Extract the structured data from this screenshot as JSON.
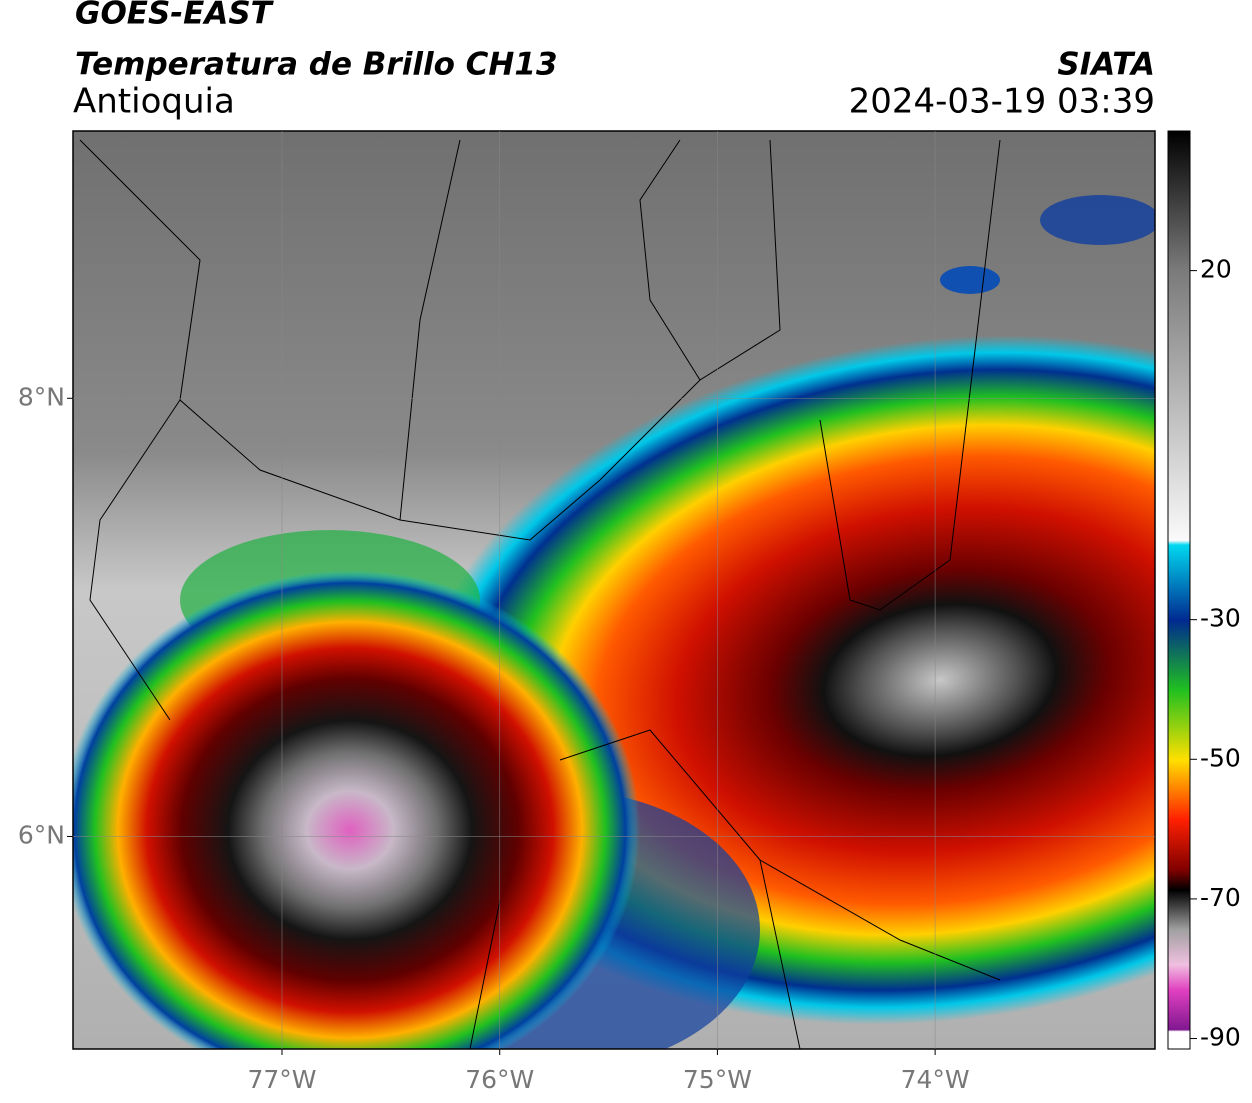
{
  "header": {
    "title": "GOES-EAST",
    "subtitle": "Temperatura de Brillo CH13",
    "region": "Antioquia",
    "source": "SIATA",
    "timestamp": "2024-03-19 03:39"
  },
  "map": {
    "xlim": [
      -77.96,
      -72.99
    ],
    "ylim": [
      5.03,
      9.22
    ],
    "xticks": [
      {
        "value": -77,
        "label": "77°W"
      },
      {
        "value": -76,
        "label": "76°W"
      },
      {
        "value": -75,
        "label": "75°W"
      },
      {
        "value": -74,
        "label": "74°W"
      }
    ],
    "yticks": [
      {
        "value": 6,
        "label": "6°N"
      },
      {
        "value": 8,
        "label": "8°N"
      }
    ]
  },
  "colorbar": {
    "lim": [
      40,
      -91.5
    ],
    "ticks": [
      20,
      -30,
      -50,
      -70,
      -90
    ]
  }
}
